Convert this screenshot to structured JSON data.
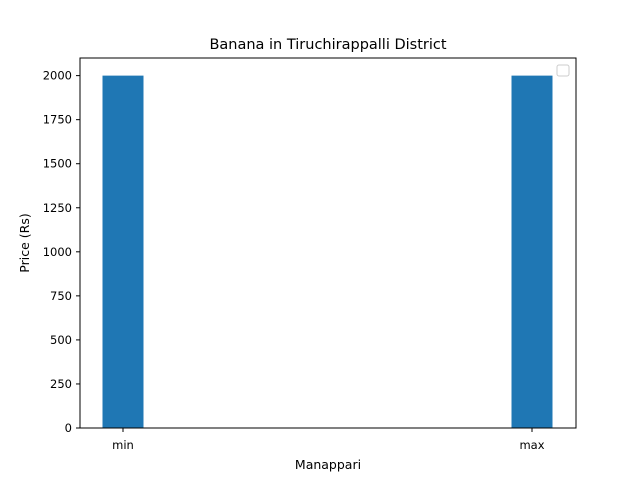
{
  "chart_data": {
    "type": "bar",
    "title": "Banana in Tiruchirappalli District",
    "xlabel": "Manappari",
    "ylabel": "Price (Rs)",
    "categories": [
      "min",
      "max"
    ],
    "values": [
      2000,
      2000
    ],
    "ylim": [
      0,
      2100
    ],
    "yticks": [
      0,
      250,
      500,
      750,
      1000,
      1250,
      1500,
      1750,
      2000
    ],
    "bar_color": "#1f77b4",
    "grid": false,
    "legend": {
      "placement": "top-right",
      "entries": []
    }
  }
}
